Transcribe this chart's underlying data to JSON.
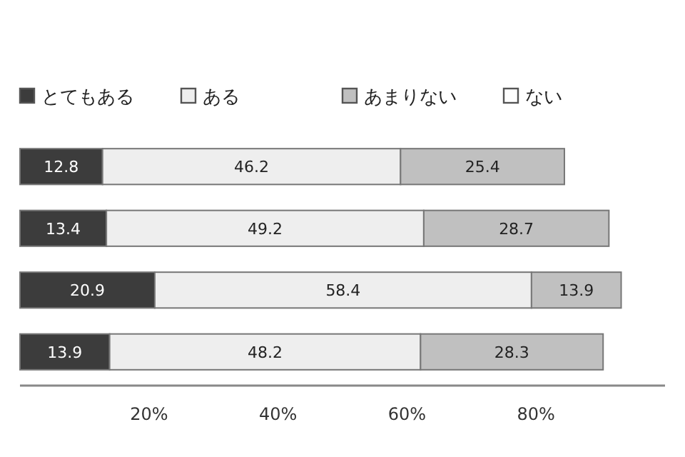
{
  "chart_data": {
    "type": "bar",
    "orientation": "horizontal",
    "stacked": true,
    "categories": [
      null,
      null,
      null,
      null
    ],
    "series": [
      {
        "name": "とてもある",
        "color": "#3c3c3c",
        "values": [
          12.8,
          13.4,
          20.9,
          13.9
        ]
      },
      {
        "name": "ある",
        "color": "#eeeeee",
        "values": [
          46.2,
          49.2,
          58.4,
          48.2
        ]
      },
      {
        "name": "あまりない",
        "color": "#c0c0c0",
        "values": [
          25.4,
          28.7,
          13.9,
          28.3
        ]
      },
      {
        "name": "ない",
        "color": "#ffffff",
        "values": [
          null,
          null,
          null,
          null
        ]
      }
    ],
    "xlim": [
      0,
      100
    ],
    "xticks": [
      {
        "value": 20,
        "label": "20%"
      },
      {
        "value": 40,
        "label": "40%"
      },
      {
        "value": 60,
        "label": "60%"
      },
      {
        "value": 80,
        "label": "80%"
      }
    ],
    "data_labels": true,
    "legend": "top",
    "tick_labels": "x"
  }
}
